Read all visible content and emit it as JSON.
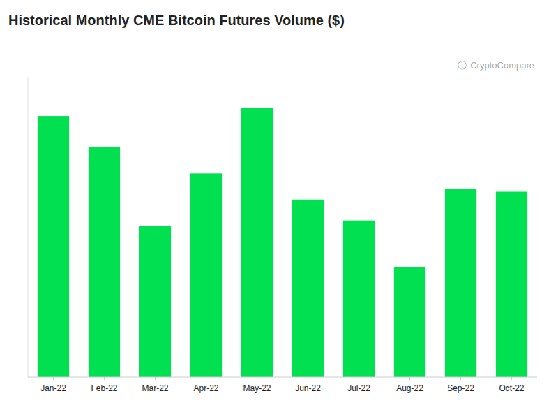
{
  "chart_data": {
    "type": "bar",
    "title": "Historical Monthly CME Bitcoin Futures Volume ($)",
    "categories": [
      "Jan-22",
      "Feb-22",
      "Mar-22",
      "Apr-22",
      "May-22",
      "Jun-22",
      "Jul-22",
      "Aug-22",
      "Sep-22",
      "Oct-22"
    ],
    "values": [
      100,
      88,
      58,
      78,
      103,
      68,
      60,
      42,
      72,
      71
    ],
    "color": "#00E050",
    "ylim": [
      0,
      115
    ],
    "grid": false,
    "tick_labels": "x",
    "annotations": [
      "ⓘ",
      "CryptoCompare"
    ]
  }
}
